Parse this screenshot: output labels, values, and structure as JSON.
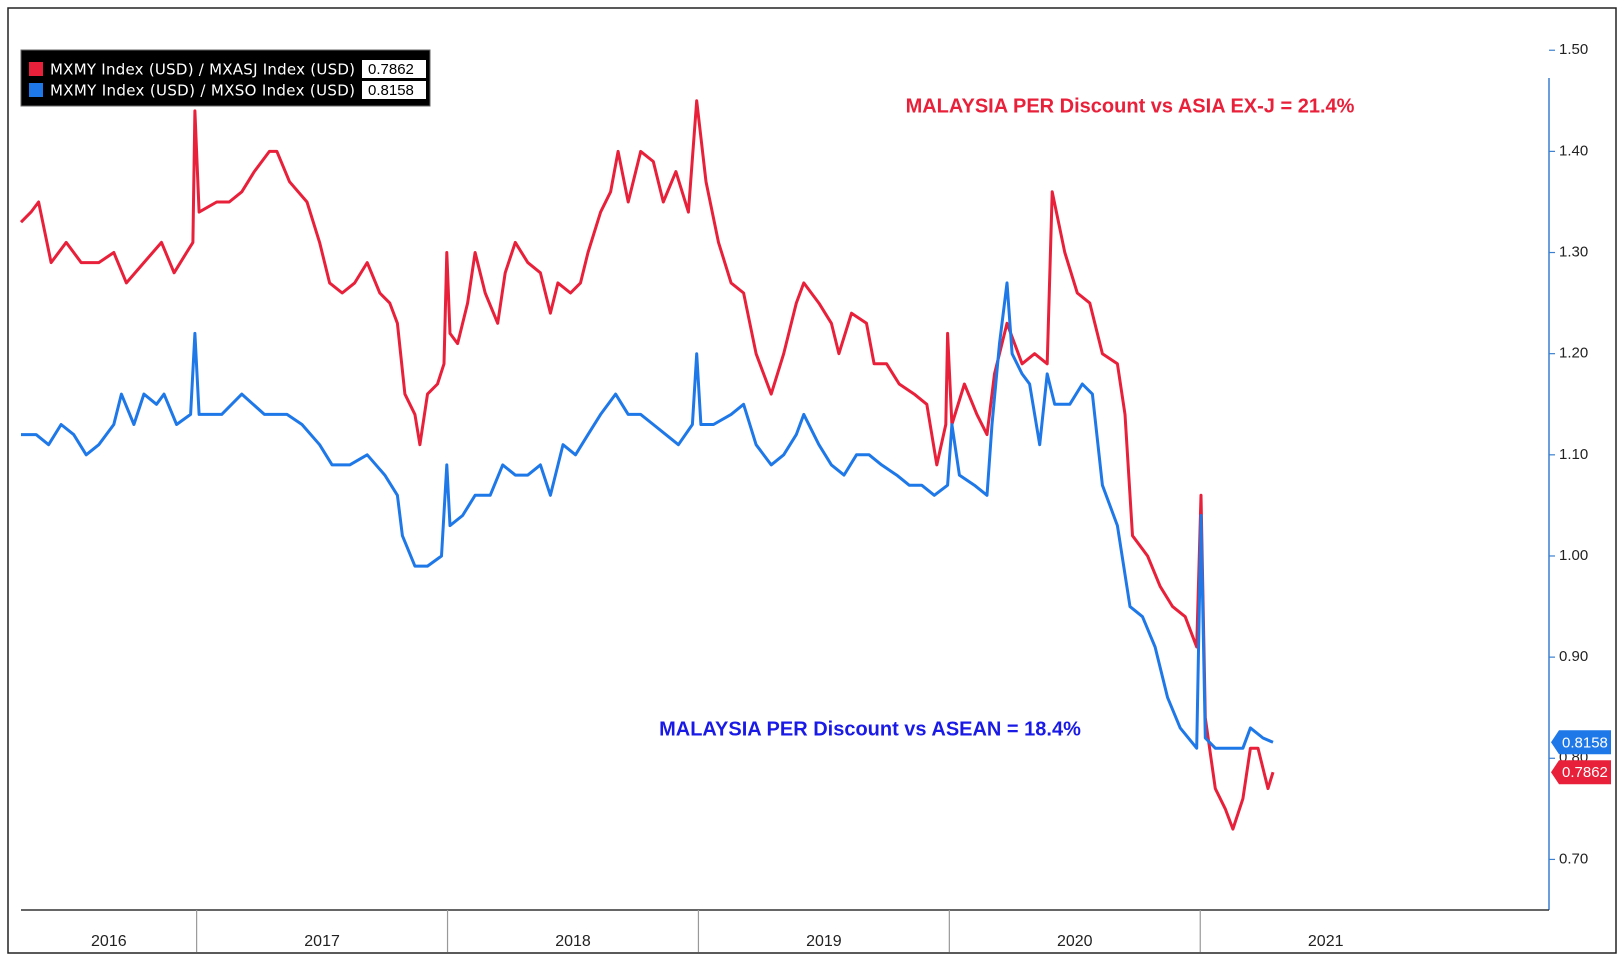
{
  "chart_data": {
    "type": "line",
    "annotations": [
      {
        "text": "MALAYSIA PER Discount vs ASIA EX-J = 21.4%",
        "color": "#e8203a"
      },
      {
        "text": "MALAYSIA PER Discount vs ASEAN = 18.4%",
        "color": "#1a1ae6"
      }
    ],
    "series": [
      {
        "name": "MXMY Index (USD) / MXASJ Index (USD)",
        "color": "#e8203a",
        "x": [
          2016.3,
          2016.34,
          2016.37,
          2016.42,
          2016.48,
          2016.54,
          2016.61,
          2016.67,
          2016.72,
          2016.79,
          2016.86,
          2016.91,
          2016.96,
          2016.985,
          2016.993,
          2017.01,
          2017.08,
          2017.13,
          2017.18,
          2017.23,
          2017.29,
          2017.32,
          2017.37,
          2017.44,
          2017.49,
          2017.53,
          2017.58,
          2017.63,
          2017.68,
          2017.73,
          2017.77,
          2017.8,
          2017.83,
          2017.87,
          2017.89,
          2017.92,
          2017.96,
          2017.986,
          2017.997,
          2018.01,
          2018.04,
          2018.08,
          2018.11,
          2018.15,
          2018.2,
          2018.23,
          2018.27,
          2018.32,
          2018.37,
          2018.41,
          2018.44,
          2018.49,
          2018.53,
          2018.56,
          2018.61,
          2018.65,
          2018.68,
          2018.72,
          2018.77,
          2018.82,
          2018.86,
          2018.91,
          2018.96,
          2018.993,
          2019.03,
          2019.08,
          2019.13,
          2019.18,
          2019.23,
          2019.29,
          2019.34,
          2019.39,
          2019.42,
          2019.48,
          2019.53,
          2019.56,
          2019.61,
          2019.67,
          2019.7,
          2019.75,
          2019.8,
          2019.86,
          2019.91,
          2019.95,
          2019.986,
          2019.993,
          2020.01,
          2020.06,
          2020.11,
          2020.15,
          2020.18,
          2020.23,
          2020.29,
          2020.34,
          2020.39,
          2020.41,
          2020.46,
          2020.51,
          2020.56,
          2020.61,
          2020.67,
          2020.7,
          2020.73,
          2020.79,
          2020.84,
          2020.89,
          2020.94,
          2020.986,
          2021.003,
          2021.02,
          2021.06,
          2021.1,
          2021.13,
          2021.17,
          2021.2,
          2021.23,
          2021.27,
          2021.29
        ],
        "values": [
          1.33,
          1.34,
          1.35,
          1.29,
          1.31,
          1.29,
          1.29,
          1.3,
          1.27,
          1.29,
          1.31,
          1.28,
          1.3,
          1.31,
          1.44,
          1.34,
          1.35,
          1.35,
          1.36,
          1.38,
          1.4,
          1.4,
          1.37,
          1.35,
          1.31,
          1.27,
          1.26,
          1.27,
          1.29,
          1.26,
          1.25,
          1.23,
          1.16,
          1.14,
          1.11,
          1.16,
          1.17,
          1.19,
          1.3,
          1.22,
          1.21,
          1.25,
          1.3,
          1.26,
          1.23,
          1.28,
          1.31,
          1.29,
          1.28,
          1.24,
          1.27,
          1.26,
          1.27,
          1.3,
          1.34,
          1.36,
          1.4,
          1.35,
          1.4,
          1.39,
          1.35,
          1.38,
          1.34,
          1.45,
          1.37,
          1.31,
          1.27,
          1.26,
          1.2,
          1.16,
          1.2,
          1.25,
          1.27,
          1.25,
          1.23,
          1.2,
          1.24,
          1.23,
          1.19,
          1.19,
          1.17,
          1.16,
          1.15,
          1.09,
          1.13,
          1.22,
          1.13,
          1.17,
          1.14,
          1.12,
          1.18,
          1.23,
          1.19,
          1.2,
          1.19,
          1.36,
          1.3,
          1.26,
          1.25,
          1.2,
          1.19,
          1.14,
          1.02,
          1.0,
          0.97,
          0.95,
          0.94,
          0.91,
          1.06,
          0.84,
          0.77,
          0.75,
          0.73,
          0.76,
          0.81,
          0.81,
          0.77,
          0.7862
        ]
      },
      {
        "name": "MXMY Index (USD) / MXSO Index (USD)",
        "color": "#1f78e8",
        "x": [
          2016.3,
          2016.36,
          2016.41,
          2016.46,
          2016.51,
          2016.56,
          2016.61,
          2016.67,
          2016.7,
          2016.75,
          2016.79,
          2016.84,
          2016.87,
          2016.92,
          2016.976,
          2016.993,
          2017.01,
          2017.1,
          2017.18,
          2017.27,
          2017.36,
          2017.42,
          2017.49,
          2017.54,
          2017.61,
          2017.68,
          2017.75,
          2017.8,
          2017.82,
          2017.87,
          2017.92,
          2017.976,
          2017.997,
          2018.01,
          2018.06,
          2018.11,
          2018.17,
          2018.22,
          2018.27,
          2018.32,
          2018.37,
          2018.41,
          2018.46,
          2018.51,
          2018.56,
          2018.61,
          2018.67,
          2018.72,
          2018.77,
          2018.82,
          2018.87,
          2018.92,
          2018.976,
          2018.993,
          2019.01,
          2019.06,
          2019.13,
          2019.18,
          2019.23,
          2019.29,
          2019.34,
          2019.39,
          2019.42,
          2019.48,
          2019.53,
          2019.58,
          2019.63,
          2019.68,
          2019.73,
          2019.79,
          2019.84,
          2019.89,
          2019.94,
          2019.993,
          2020.01,
          2020.04,
          2020.1,
          2020.15,
          2020.17,
          2020.2,
          2020.23,
          2020.25,
          2020.29,
          2020.32,
          2020.36,
          2020.39,
          2020.42,
          2020.48,
          2020.53,
          2020.57,
          2020.61,
          2020.67,
          2020.72,
          2020.77,
          2020.82,
          2020.87,
          2020.92,
          2020.986,
          2021.003,
          2021.02,
          2021.06,
          2021.11,
          2021.17,
          2021.2,
          2021.25,
          2021.29
        ],
        "values": [
          1.12,
          1.12,
          1.11,
          1.13,
          1.12,
          1.1,
          1.11,
          1.13,
          1.16,
          1.13,
          1.16,
          1.15,
          1.16,
          1.13,
          1.14,
          1.22,
          1.14,
          1.14,
          1.16,
          1.14,
          1.14,
          1.13,
          1.11,
          1.09,
          1.09,
          1.1,
          1.08,
          1.06,
          1.02,
          0.99,
          0.99,
          1.0,
          1.09,
          1.03,
          1.04,
          1.06,
          1.06,
          1.09,
          1.08,
          1.08,
          1.09,
          1.06,
          1.11,
          1.1,
          1.12,
          1.14,
          1.16,
          1.14,
          1.14,
          1.13,
          1.12,
          1.11,
          1.13,
          1.2,
          1.13,
          1.13,
          1.14,
          1.15,
          1.11,
          1.09,
          1.1,
          1.12,
          1.14,
          1.11,
          1.09,
          1.08,
          1.1,
          1.1,
          1.09,
          1.08,
          1.07,
          1.07,
          1.06,
          1.07,
          1.13,
          1.08,
          1.07,
          1.06,
          1.13,
          1.21,
          1.27,
          1.2,
          1.18,
          1.17,
          1.11,
          1.18,
          1.15,
          1.15,
          1.17,
          1.16,
          1.07,
          1.03,
          0.95,
          0.94,
          0.91,
          0.86,
          0.83,
          0.81,
          1.04,
          0.82,
          0.81,
          0.81,
          0.81,
          0.83,
          0.82,
          0.8158
        ]
      }
    ],
    "xlim": [
      2016.3,
      2022.39
    ],
    "xticks": [
      2016,
      2017,
      2018,
      2019,
      2020,
      2021
    ],
    "ylim": [
      0.65,
      1.52
    ],
    "yticks": [
      {
        "value": 0.7,
        "label": "0.70"
      },
      {
        "value": 0.8,
        "label": "0.80"
      },
      {
        "value": 0.9,
        "label": "0.90"
      },
      {
        "value": 1.0,
        "label": "1.00"
      },
      {
        "value": 1.1,
        "label": "1.10"
      },
      {
        "value": 1.2,
        "label": "1.20"
      },
      {
        "value": 1.3,
        "label": "1.30"
      },
      {
        "value": 1.4,
        "label": "1.40"
      },
      {
        "value": 1.5,
        "label": "1.50"
      }
    ],
    "legend": "top-left"
  }
}
